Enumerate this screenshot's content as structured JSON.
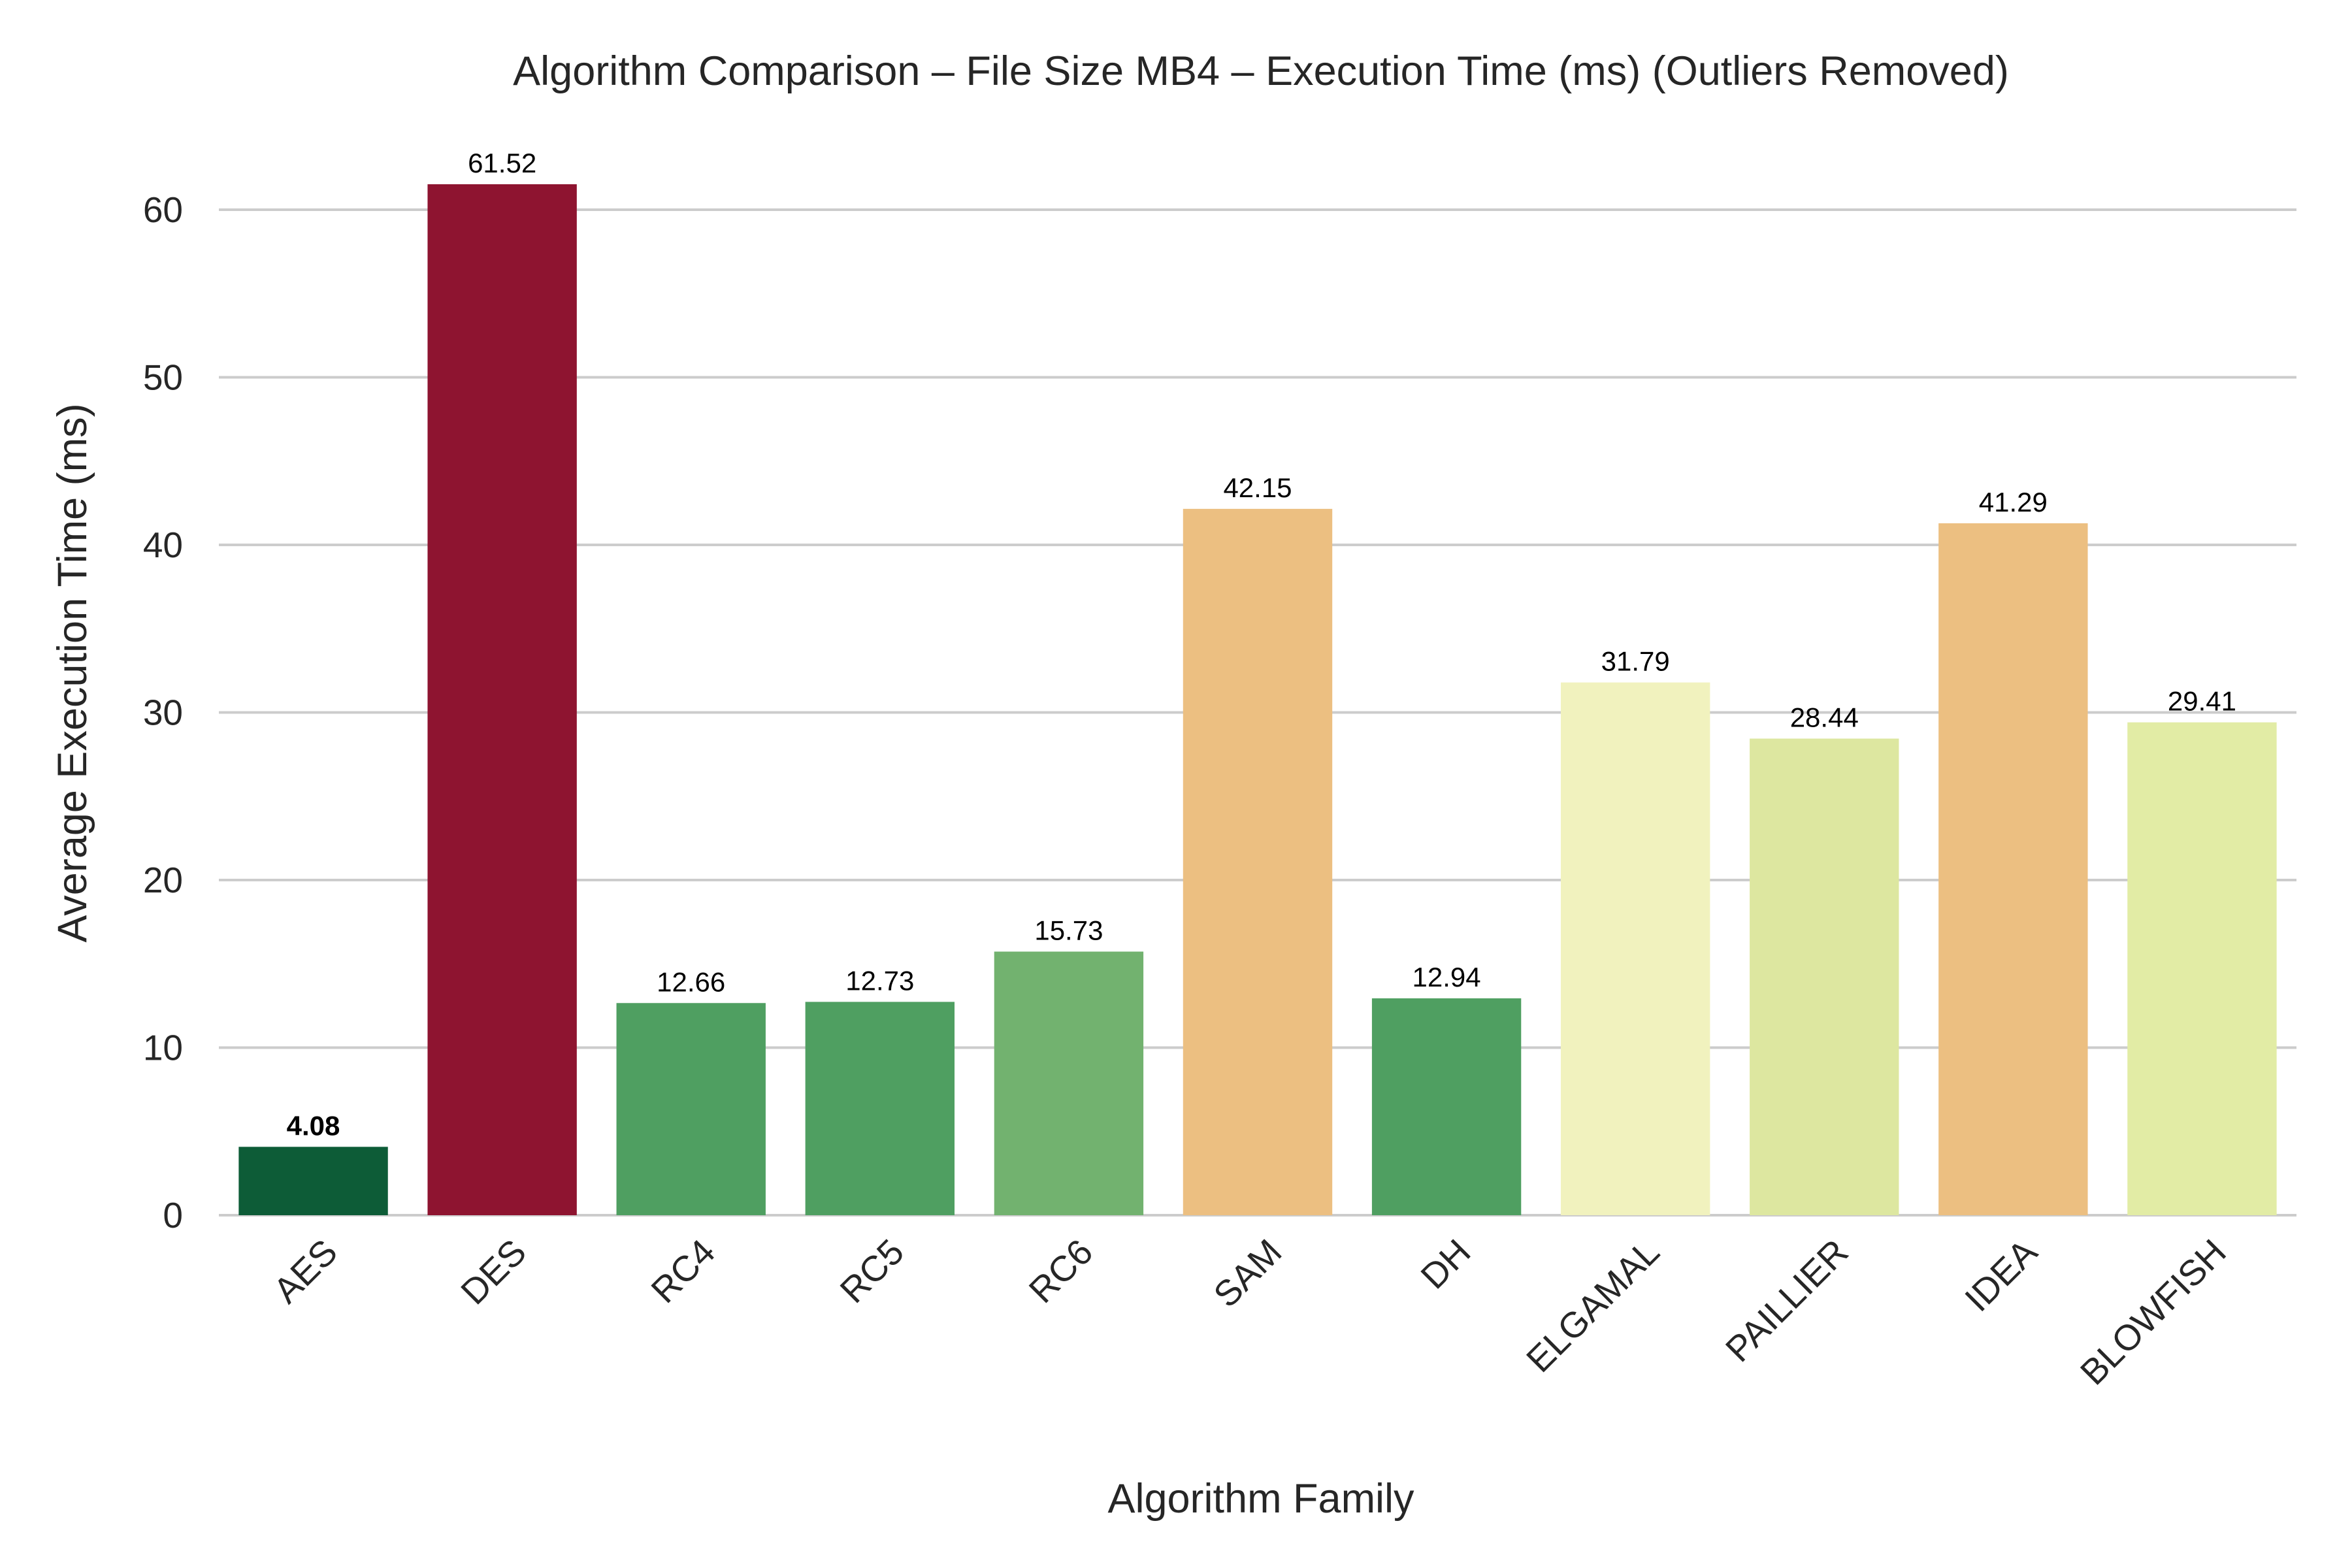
{
  "chart_data": {
    "type": "bar",
    "title": "Algorithm Comparison – File Size MB4 – Execution Time (ms) (Outliers Removed)",
    "xlabel": "Algorithm Family",
    "ylabel": "Average Execution Time (ms)",
    "categories": [
      "AES",
      "DES",
      "RC4",
      "RC5",
      "RC6",
      "SAM",
      "DH",
      "ELGAMAL",
      "PAILLIER",
      "IDEA",
      "BLOWFISH"
    ],
    "values": [
      4.08,
      61.52,
      12.66,
      12.73,
      15.73,
      42.15,
      12.94,
      31.79,
      28.44,
      41.29,
      29.41
    ],
    "value_labels": [
      "4.08",
      "61.52",
      "12.66",
      "12.73",
      "15.73",
      "42.15",
      "12.94",
      "31.79",
      "28.44",
      "41.29",
      "29.41"
    ],
    "colors": [
      "#0d5c37",
      "#8e1430",
      "#4f9f61",
      "#4f9f61",
      "#72b26f",
      "#ecbf81",
      "#4f9f61",
      "#f1f2be",
      "#dde7a0",
      "#ecbf81",
      "#e2eca5"
    ],
    "highlight_index": 0,
    "highlight_label_color": "#1a6b1a",
    "ylim": [
      0,
      65
    ],
    "yticks": [
      0,
      10,
      20,
      30,
      40,
      50,
      60
    ],
    "ytick_labels": [
      "0",
      "10",
      "20",
      "30",
      "40",
      "50",
      "60"
    ],
    "grid": true,
    "grid_axis": "y",
    "xtick_rotation": -45
  }
}
